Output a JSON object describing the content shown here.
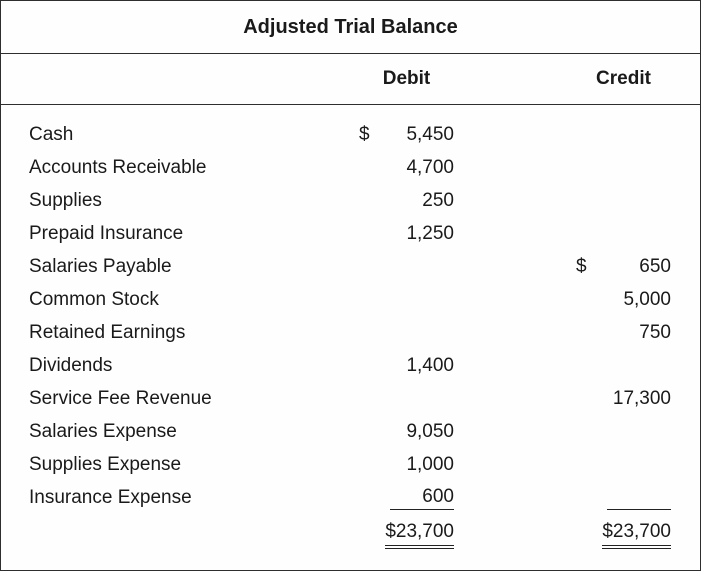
{
  "title": "Adjusted Trial Balance",
  "header": {
    "debit": "Debit",
    "credit": "Credit"
  },
  "rows": [
    {
      "account": "Cash",
      "debit_symbol": "$",
      "debit": "5,450",
      "credit_symbol": "",
      "credit": ""
    },
    {
      "account": "Accounts Receivable",
      "debit_symbol": "",
      "debit": "4,700",
      "credit_symbol": "",
      "credit": ""
    },
    {
      "account": "Supplies",
      "debit_symbol": "",
      "debit": "250",
      "credit_symbol": "",
      "credit": ""
    },
    {
      "account": "Prepaid Insurance",
      "debit_symbol": "",
      "debit": "1,250",
      "credit_symbol": "",
      "credit": ""
    },
    {
      "account": "Salaries Payable",
      "debit_symbol": "",
      "debit": "",
      "credit_symbol": "$",
      "credit": "650"
    },
    {
      "account": "Common Stock",
      "debit_symbol": "",
      "debit": "",
      "credit_symbol": "",
      "credit": "5,000"
    },
    {
      "account": "Retained Earnings",
      "debit_symbol": "",
      "debit": "",
      "credit_symbol": "",
      "credit": "750"
    },
    {
      "account": "Dividends",
      "debit_symbol": "",
      "debit": "1,400",
      "credit_symbol": "",
      "credit": ""
    },
    {
      "account": "Service Fee Revenue",
      "debit_symbol": "",
      "debit": "",
      "credit_symbol": "",
      "credit": "17,300"
    },
    {
      "account": "Salaries Expense",
      "debit_symbol": "",
      "debit": "9,050",
      "credit_symbol": "",
      "credit": ""
    },
    {
      "account": "Supplies Expense",
      "debit_symbol": "",
      "debit": "1,000",
      "credit_symbol": "",
      "credit": ""
    },
    {
      "account": "Insurance Expense",
      "debit_symbol": "",
      "debit": "600",
      "credit_symbol": "",
      "credit": "",
      "debit_rule": true,
      "credit_rule": true
    }
  ],
  "totals": {
    "debit": "$23,700",
    "credit": "$23,700"
  }
}
